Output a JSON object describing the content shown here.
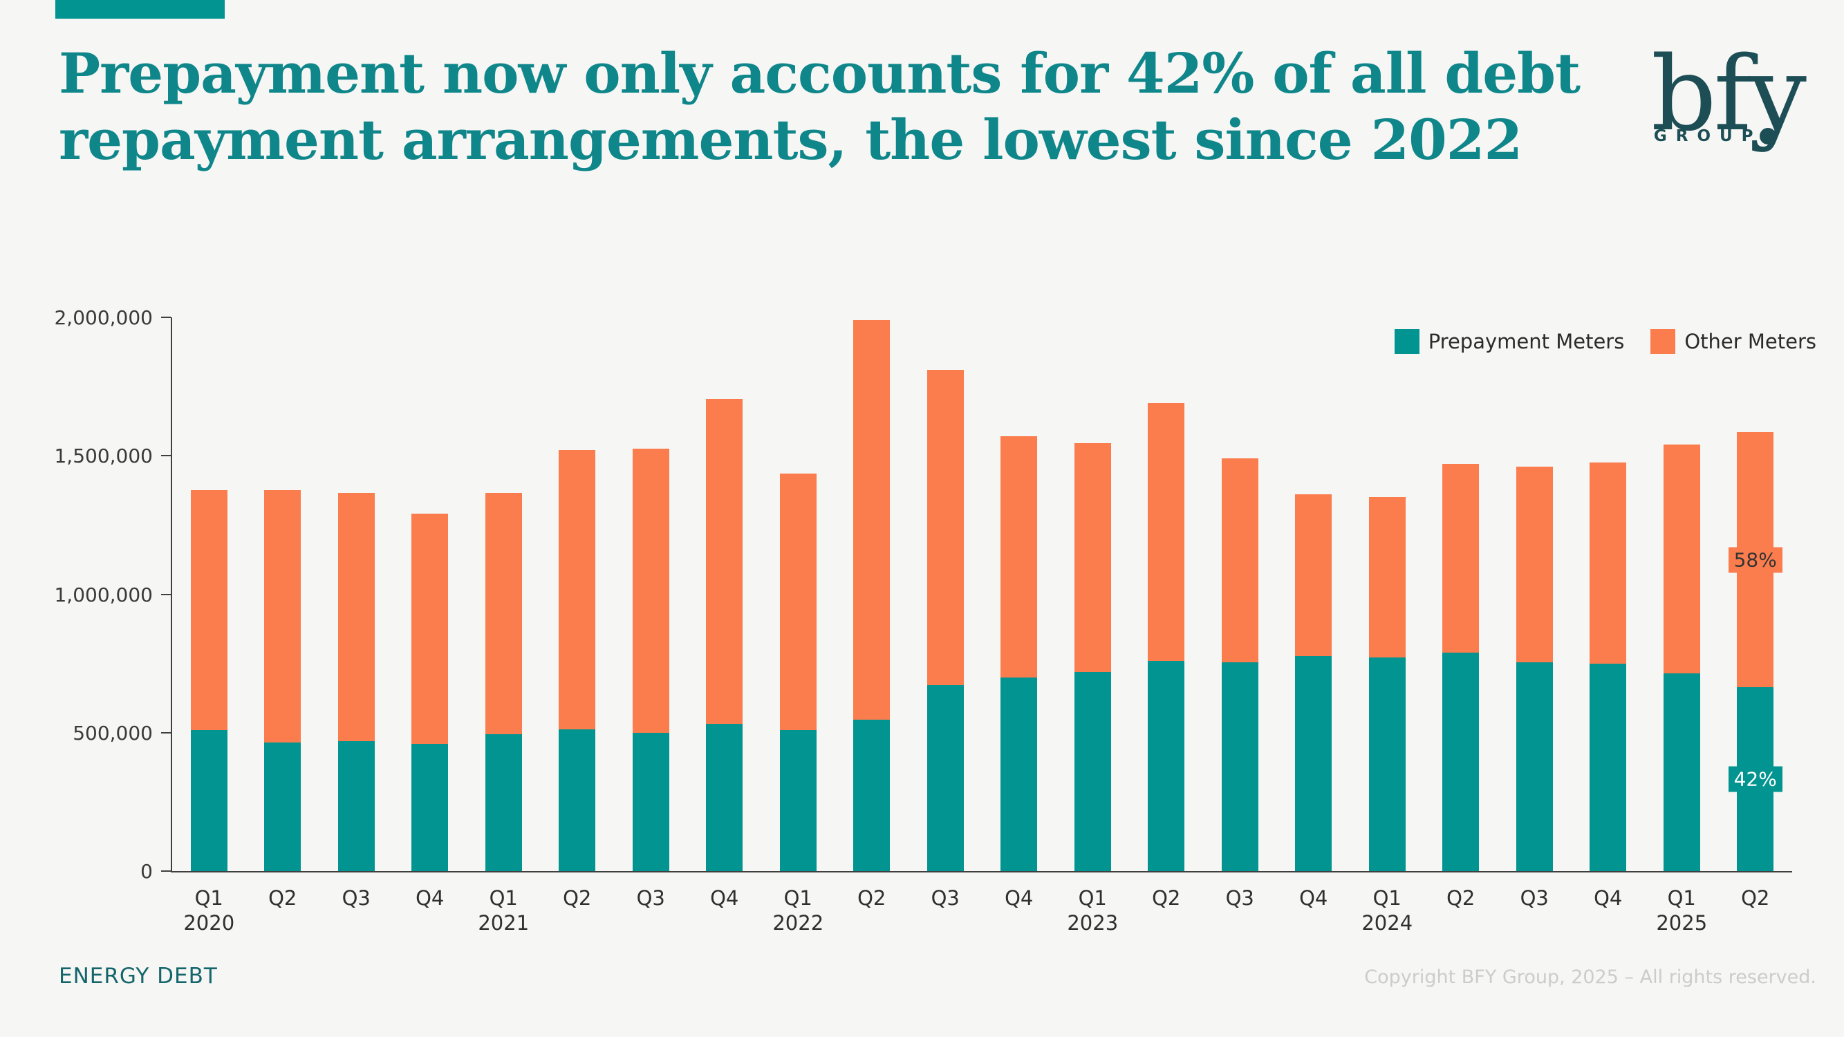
{
  "header": {
    "title_line1": "Prepayment now only accounts for 42% of all debt",
    "title_line2": "repayment arrangements, the lowest since 2022",
    "brand": {
      "name": "bfy",
      "sub": "GROUP"
    }
  },
  "colors": {
    "prepayment": "#029490",
    "other": "#fb7d4e",
    "title": "#0e868a",
    "logo": "#1d4e56",
    "background": "#f6f6f4"
  },
  "y_axis": {
    "ticks": [
      "2,000,000",
      "1,500,000",
      "1,000,000",
      "500,000",
      "0"
    ]
  },
  "annotations": {
    "other_pct": "58%",
    "prepay_pct": "42%"
  },
  "legend": {
    "items": [
      {
        "label": "Prepayment Meters",
        "color": "#029490"
      },
      {
        "label": "Other Meters",
        "color": "#fb7d4e"
      }
    ]
  },
  "footer": {
    "left": "ENERGY DEBT",
    "right": "Copyright BFY Group, 2025 – All rights reserved."
  },
  "chart_data": {
    "type": "bar",
    "stacked": true,
    "ylim": [
      0,
      2000000
    ],
    "grid": false,
    "legend_position": "top-right",
    "xlabel": "",
    "ylabel": "",
    "categories": [
      {
        "quarter": "Q1",
        "year": "2020"
      },
      {
        "quarter": "Q2"
      },
      {
        "quarter": "Q3"
      },
      {
        "quarter": "Q4"
      },
      {
        "quarter": "Q1",
        "year": "2021"
      },
      {
        "quarter": "Q2"
      },
      {
        "quarter": "Q3"
      },
      {
        "quarter": "Q4"
      },
      {
        "quarter": "Q1",
        "year": "2022"
      },
      {
        "quarter": "Q2"
      },
      {
        "quarter": "Q3"
      },
      {
        "quarter": "Q4"
      },
      {
        "quarter": "Q1",
        "year": "2023"
      },
      {
        "quarter": "Q2"
      },
      {
        "quarter": "Q3"
      },
      {
        "quarter": "Q4"
      },
      {
        "quarter": "Q1",
        "year": "2024"
      },
      {
        "quarter": "Q2"
      },
      {
        "quarter": "Q3"
      },
      {
        "quarter": "Q4"
      },
      {
        "quarter": "Q1",
        "year": "2025"
      },
      {
        "quarter": "Q2"
      }
    ],
    "series": [
      {
        "name": "Prepayment Meters",
        "color": "#029490",
        "values": [
          510000,
          465000,
          470000,
          460000,
          495000,
          512000,
          500000,
          532000,
          510000,
          548000,
          672000,
          700000,
          720000,
          758000,
          755000,
          777000,
          772000,
          790000,
          754000,
          750000,
          715000,
          665000
        ]
      },
      {
        "name": "Other Meters",
        "color": "#fb7d4e",
        "values": [
          865000,
          910000,
          895000,
          830000,
          870000,
          1008000,
          1025000,
          1173000,
          925000,
          1442000,
          1138000,
          870000,
          825000,
          932000,
          735000,
          583000,
          578000,
          680000,
          706000,
          725000,
          825000,
          920000
        ]
      }
    ],
    "data_labels": {
      "last_bar_other": "58%",
      "last_bar_prepayment": "42%"
    }
  }
}
